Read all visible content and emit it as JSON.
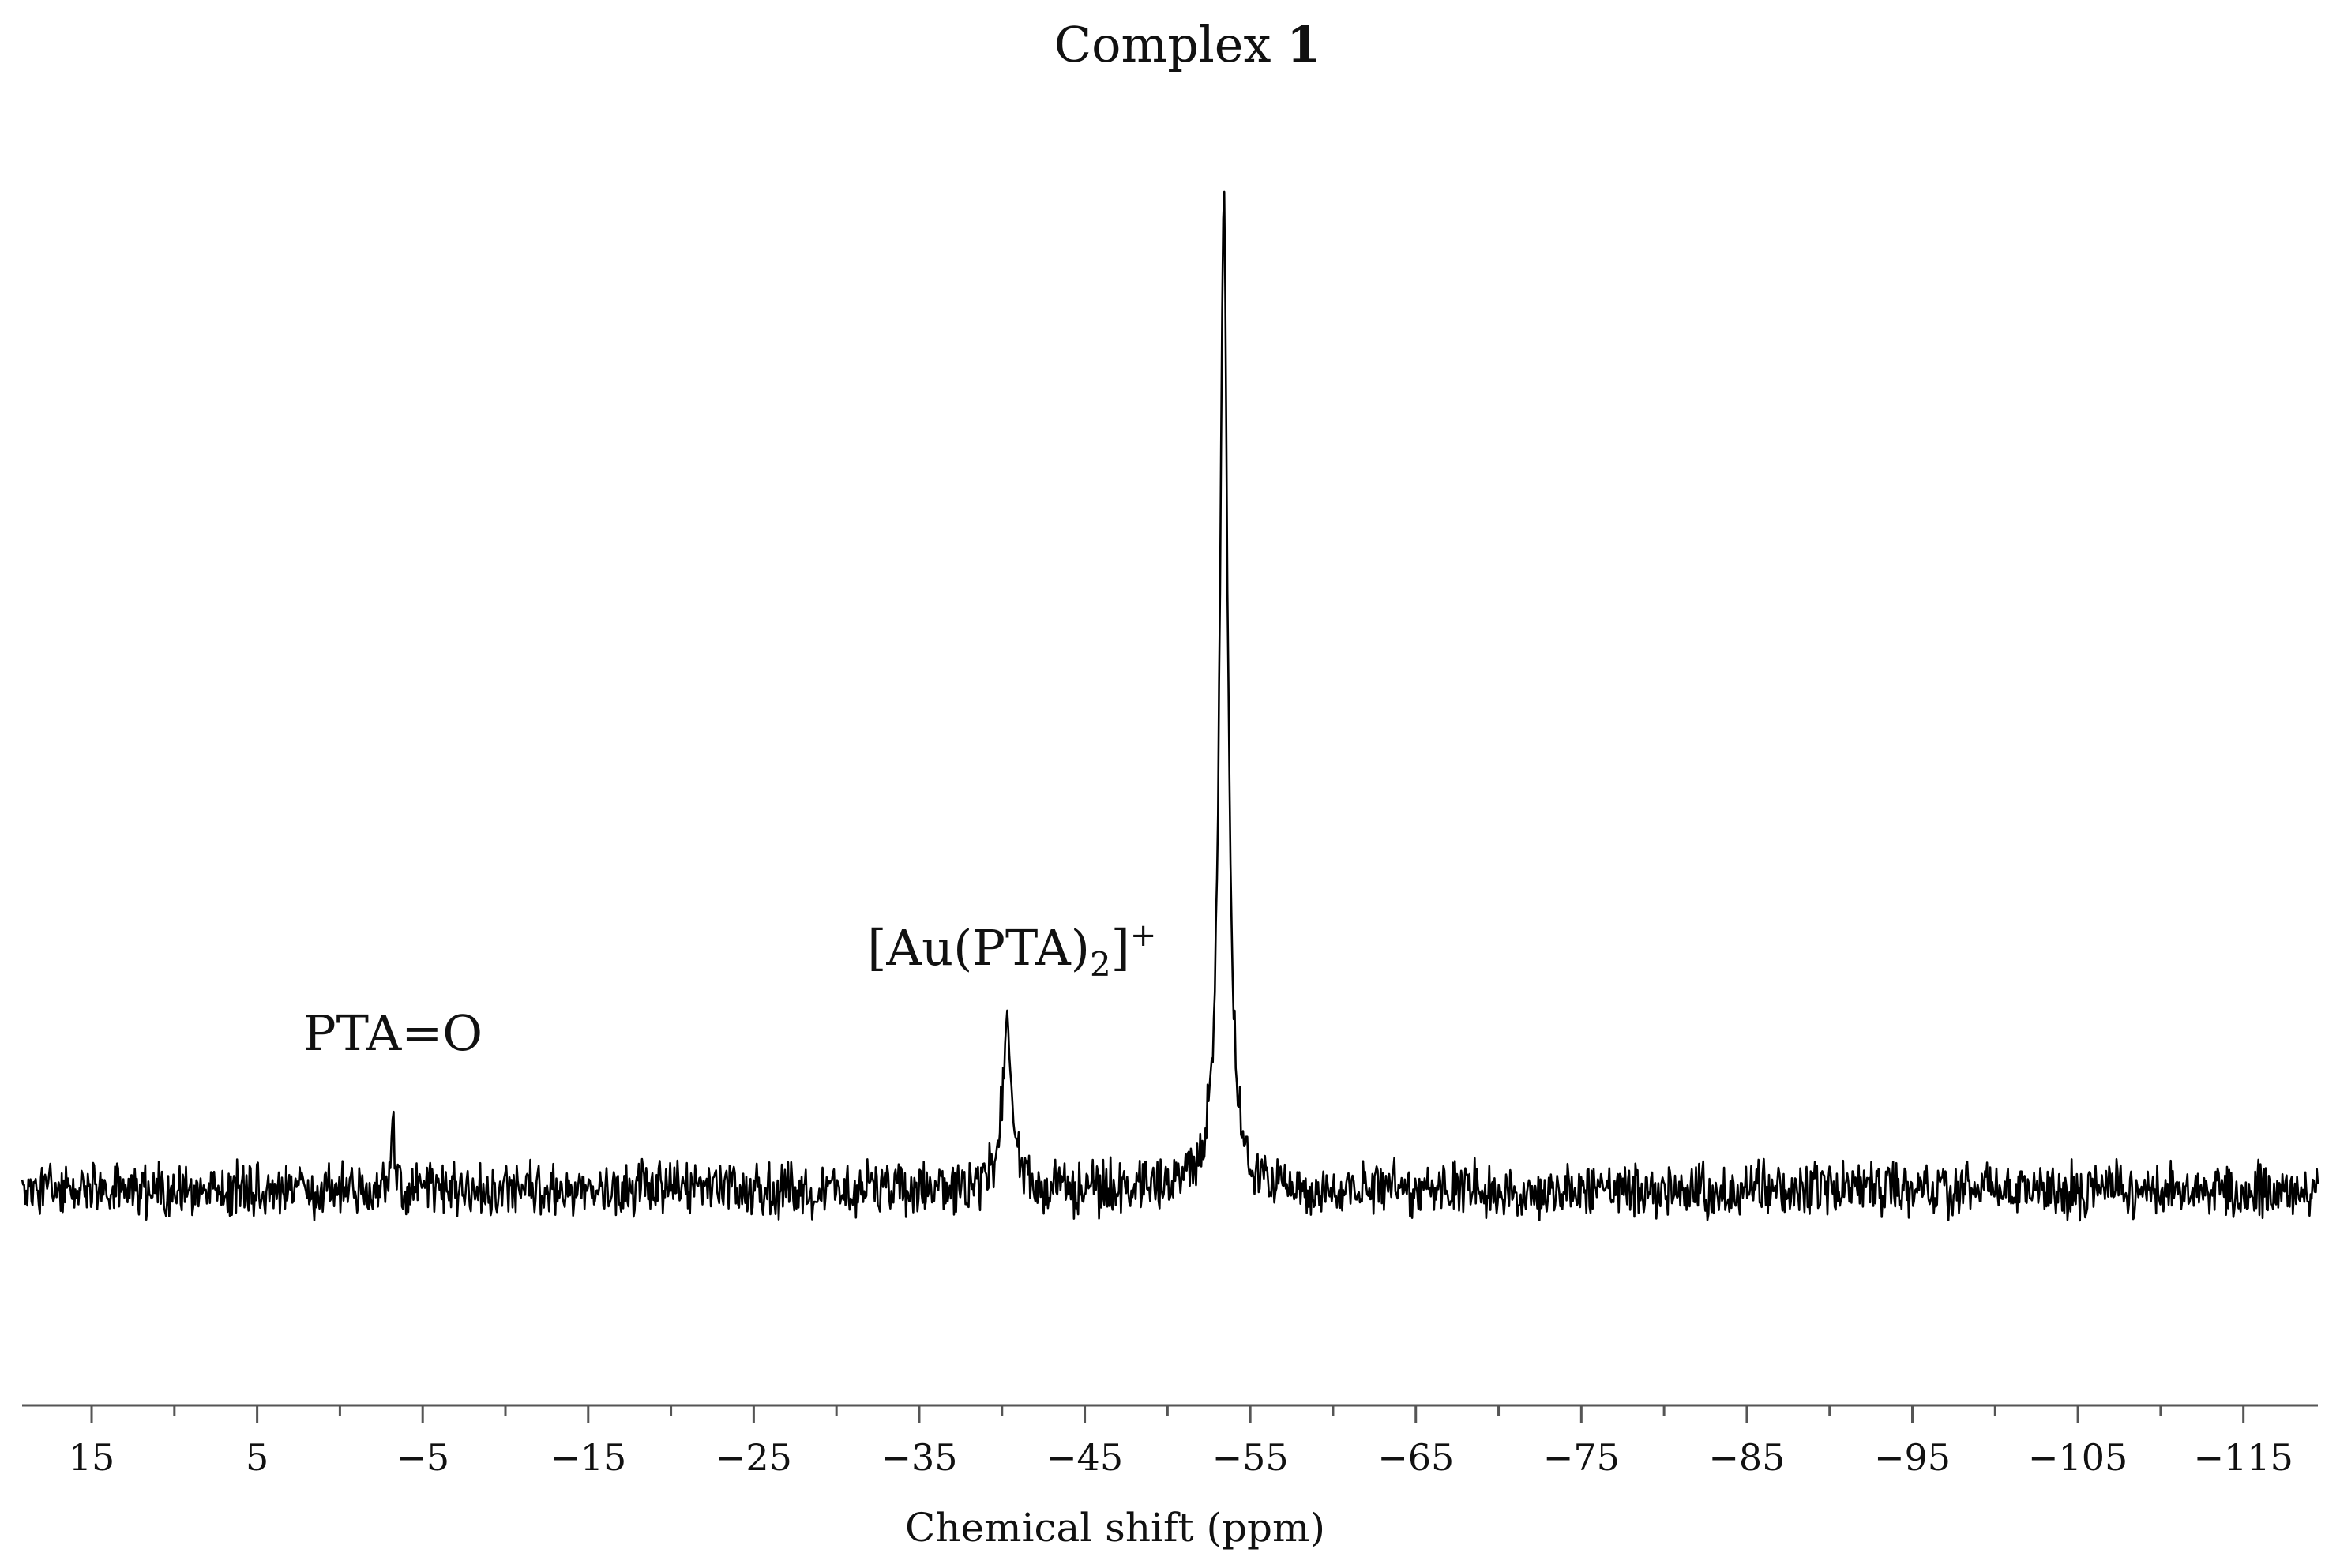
{
  "chart_data": {
    "type": "line",
    "title": "",
    "xlabel": "Chemical shift (ppm)",
    "ylabel": "",
    "xlim": [
      19.2,
      -119.5
    ],
    "x_reversed": true,
    "x_ticks": [
      "15",
      "5",
      "−5",
      "−15",
      "−25",
      "−35",
      "−45",
      "−55",
      "−65",
      "−75",
      "−85",
      "−95",
      "−105",
      "−115"
    ],
    "x_tick_values": [
      15,
      5,
      -5,
      -15,
      -25,
      -35,
      -45,
      -55,
      -65,
      -75,
      -85,
      -95,
      -105,
      -115
    ],
    "minor_tick_step": 5,
    "grid": false,
    "legend": "none",
    "baseline": 0,
    "noise_amplitude": 2.4,
    "series": [
      {
        "peaks": [
          {
            "x": -3.2,
            "height": 4.6,
            "width": 0.08
          },
          {
            "x": -40.3,
            "height": 9.4,
            "width": 0.35
          },
          {
            "x": -53.4,
            "height": 56.0,
            "width": 0.28
          }
        ]
      }
    ],
    "annotations": [
      {
        "id": "pta-o",
        "x": -3.2,
        "text": "PTA=O"
      },
      {
        "id": "au-pta2",
        "x": -40.3,
        "text_main": "[Au(PTA)",
        "text_sub": "2",
        "text_end": "]",
        "text_sup": "+"
      },
      {
        "id": "complex-1",
        "x": -53.4,
        "text_main": "Complex ",
        "text_bold": "1"
      }
    ]
  }
}
